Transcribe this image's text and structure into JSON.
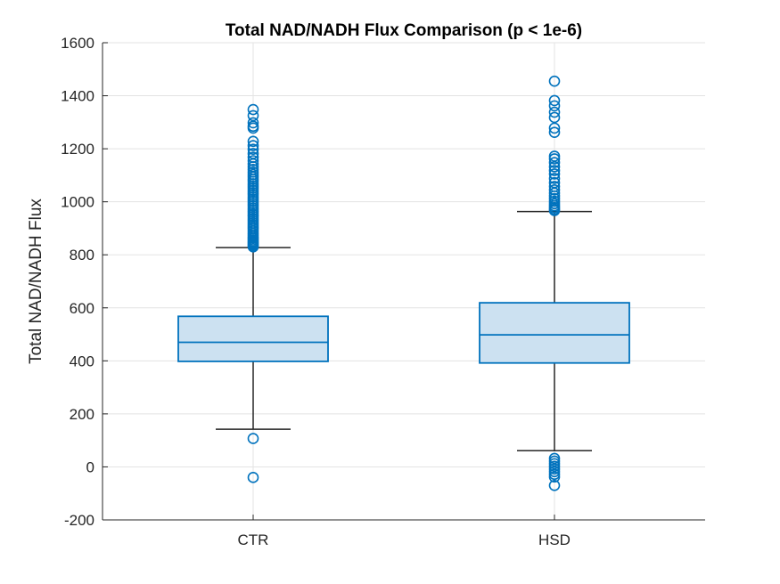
{
  "chart_data": {
    "type": "boxplot",
    "title": "Total NAD/NADH Flux Comparison (p < 1e-6)",
    "xlabel": "",
    "ylabel": "Total NAD/NADH Flux",
    "ylim": [
      -200,
      1600
    ],
    "yticks": [
      -200,
      0,
      200,
      400,
      600,
      800,
      1000,
      1200,
      1400,
      1600
    ],
    "grid": true,
    "categories": [
      "CTR",
      "HSD"
    ],
    "boxes": [
      {
        "name": "CTR",
        "whisker_low": 142,
        "q1": 398,
        "median": 470,
        "q3": 568,
        "whisker_high": 827,
        "outliers": [
          -40,
          107,
          830,
          835,
          840,
          845,
          850,
          856,
          862,
          868,
          875,
          882,
          890,
          898,
          905,
          912,
          920,
          928,
          936,
          945,
          952,
          960,
          968,
          976,
          985,
          993,
          1002,
          1010,
          1018,
          1027,
          1035,
          1043,
          1052,
          1060,
          1068,
          1077,
          1085,
          1094,
          1103,
          1112,
          1122,
          1132,
          1143,
          1155,
          1168,
          1182,
          1198,
          1212,
          1228,
          1278,
          1285,
          1298,
          1325,
          1348
        ]
      },
      {
        "name": "HSD",
        "whisker_low": 61,
        "q1": 392,
        "median": 498,
        "q3": 619,
        "whisker_high": 963,
        "outliers": [
          -70,
          -38,
          -28,
          -18,
          -8,
          2,
          12,
          22,
          32,
          967,
          972,
          978,
          985,
          993,
          1002,
          1012,
          1022,
          1033,
          1045,
          1058,
          1072,
          1088,
          1105,
          1118,
          1132,
          1148,
          1162,
          1172,
          1262,
          1278,
          1318,
          1338,
          1362,
          1382,
          1455
        ]
      }
    ]
  }
}
